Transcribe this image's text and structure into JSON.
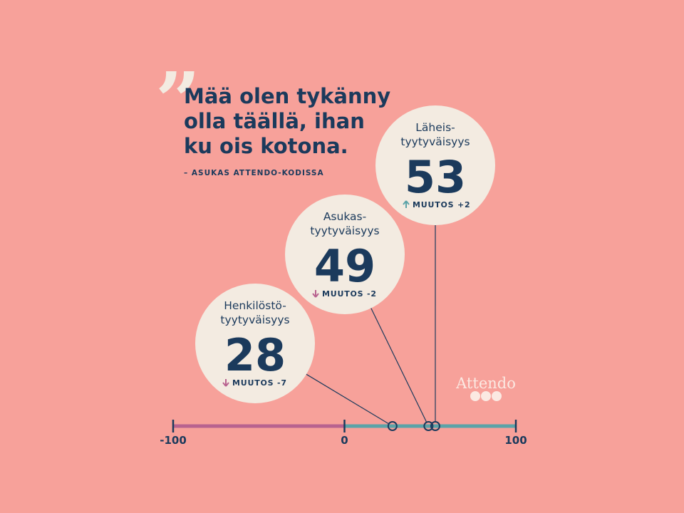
{
  "chart_data": {
    "type": "dot-scale",
    "quote_mark": "”",
    "title_lines": [
      "Mää olen tykänny",
      "olla täällä, ihan",
      "ku ois kotona."
    ],
    "subtitle": "– ASUKAS ATTENDO-KODISSA",
    "xlim": [
      -100,
      100
    ],
    "xticks": [
      -100,
      0,
      100
    ],
    "negative_color": "#b8628f",
    "positive_color": "#5ba3a8",
    "metrics": [
      {
        "name_lines": [
          "Henkilöstö-",
          "tyytyväisyys"
        ],
        "value": 28,
        "change": -7,
        "change_label": "MUUTOS -7"
      },
      {
        "name_lines": [
          "Asukas-",
          "tyytyväisyys"
        ],
        "value": 49,
        "change": -2,
        "change_label": "MUUTOS -2"
      },
      {
        "name_lines": [
          "Läheis-",
          "tyytyväisyys"
        ],
        "value": 53,
        "change": 2,
        "change_label": "MUUTOS +2"
      }
    ],
    "logo": "Attendo"
  }
}
